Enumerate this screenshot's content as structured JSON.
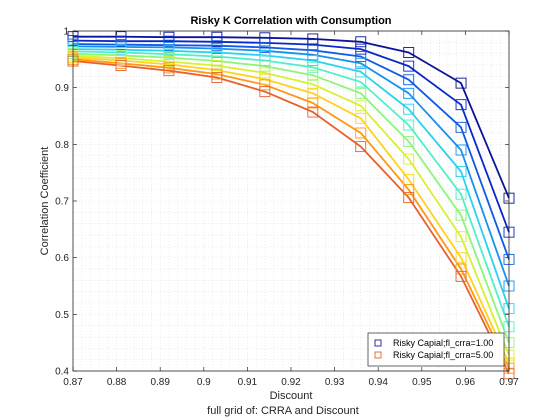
{
  "chart_data": {
    "type": "line",
    "title": "Risky K Correlation with Consumption",
    "xlabel": "Discount",
    "ylabel": "Correlation Coefficient",
    "caption": "full grid of: CRRA and Discount",
    "xlim": [
      0.87,
      0.97
    ],
    "ylim": [
      0.4,
      1.0
    ],
    "xticks": [
      "0.87",
      "0.88",
      "0.89",
      "0.9",
      "0.91",
      "0.92",
      "0.93",
      "0.94",
      "0.95",
      "0.96",
      "0.97"
    ],
    "yticks": [
      "0.4",
      "0.5",
      "0.6",
      "0.7",
      "0.8",
      "0.9",
      "1"
    ],
    "grid": "minor dotted",
    "legend_position": "bottom-right",
    "x": [
      0.87,
      0.881,
      0.892,
      0.903,
      0.914,
      0.925,
      0.936,
      0.947,
      0.959,
      0.97
    ],
    "legend": [
      {
        "label": "Risky Capial;fl_crra=1.00",
        "color": "#1a1aa8"
      },
      {
        "label": "Risky Capial;fl_crra=5.00",
        "color": "#e8602c"
      }
    ],
    "series": [
      {
        "color": "#0a1496",
        "values": [
          0.99,
          0.99,
          0.989,
          0.989,
          0.988,
          0.986,
          0.981,
          0.962,
          0.908,
          0.705
        ]
      },
      {
        "color": "#0a28c8",
        "values": [
          0.983,
          0.982,
          0.982,
          0.981,
          0.979,
          0.976,
          0.968,
          0.938,
          0.87,
          0.645
        ]
      },
      {
        "color": "#0f5ae6",
        "values": [
          0.977,
          0.976,
          0.975,
          0.974,
          0.971,
          0.966,
          0.955,
          0.914,
          0.83,
          0.597
        ]
      },
      {
        "color": "#1990f0",
        "values": [
          0.973,
          0.972,
          0.971,
          0.969,
          0.965,
          0.958,
          0.943,
          0.89,
          0.79,
          0.55
        ]
      },
      {
        "color": "#28d2f0",
        "values": [
          0.968,
          0.967,
          0.965,
          0.962,
          0.957,
          0.948,
          0.928,
          0.862,
          0.752,
          0.51
        ]
      },
      {
        "color": "#50f0c8",
        "values": [
          0.964,
          0.962,
          0.959,
          0.955,
          0.948,
          0.936,
          0.91,
          0.834,
          0.712,
          0.478
        ]
      },
      {
        "color": "#8cf57a",
        "values": [
          0.96,
          0.957,
          0.953,
          0.947,
          0.938,
          0.922,
          0.89,
          0.805,
          0.675,
          0.45
        ]
      },
      {
        "color": "#d7f032",
        "values": [
          0.956,
          0.952,
          0.946,
          0.939,
          0.926,
          0.906,
          0.868,
          0.774,
          0.637,
          0.428
        ]
      },
      {
        "color": "#ffd21e",
        "values": [
          0.953,
          0.948,
          0.941,
          0.931,
          0.915,
          0.89,
          0.846,
          0.738,
          0.6,
          0.414
        ]
      },
      {
        "color": "#ff9614",
        "values": [
          0.95,
          0.943,
          0.935,
          0.924,
          0.905,
          0.873,
          0.82,
          0.72,
          0.58,
          0.405
        ]
      },
      {
        "color": "#e8602c",
        "values": [
          0.947,
          0.939,
          0.93,
          0.918,
          0.893,
          0.857,
          0.796,
          0.706,
          0.567,
          0.395
        ]
      }
    ]
  }
}
